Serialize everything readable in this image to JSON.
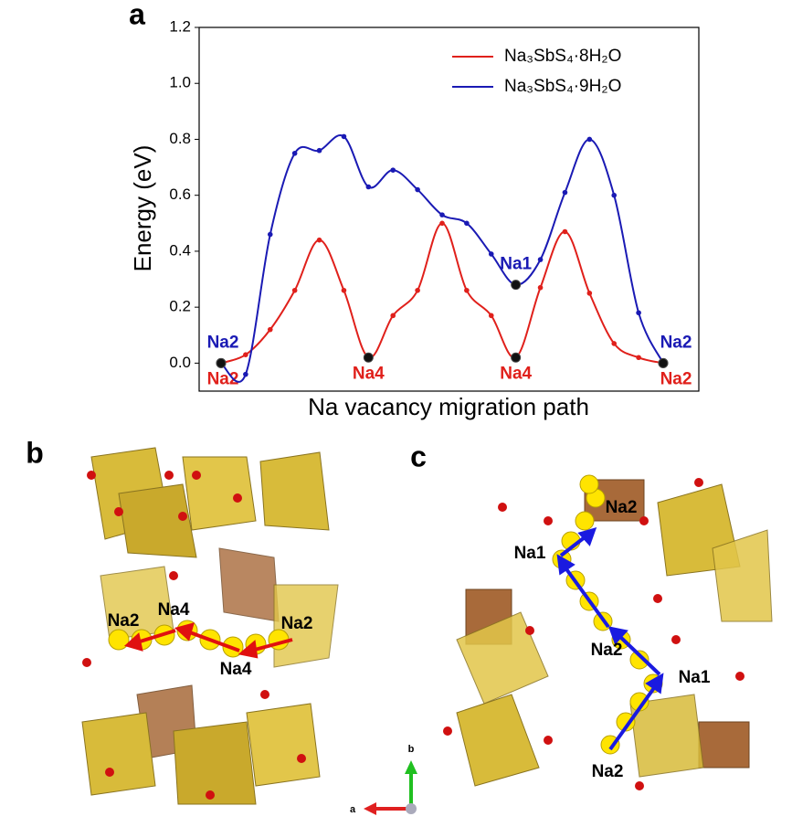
{
  "chart_data": {
    "type": "line",
    "title": "a",
    "ylabel": "Energy (eV)",
    "xlabel": "Na vacancy migration path",
    "categories": [
      null,
      null,
      null,
      null,
      null,
      null,
      null,
      null,
      null,
      null,
      null,
      null,
      null,
      null,
      null,
      null,
      null,
      null,
      null
    ],
    "ylim": [
      -0.1,
      1.2
    ],
    "yticks": [
      {
        "value": 0,
        "label": "0.0"
      },
      0.2,
      0.4,
      0.6,
      0.8,
      {
        "value": 1,
        "label": "1.0"
      },
      1.2
    ],
    "legend": "upper right",
    "series": [
      {
        "name": "Na₃SbS₄·8H₂O",
        "color": "#e0201b",
        "values": [
          0,
          0.03,
          0.12,
          0.26,
          0.44,
          0.26,
          0.02,
          0.17,
          0.26,
          0.5,
          0.26,
          0.17,
          0.02,
          0.27,
          0.47,
          0.25,
          0.07,
          0.02,
          0
        ],
        "point_labels": [
          "Na2",
          null,
          null,
          null,
          null,
          null,
          "Na4",
          null,
          null,
          null,
          null,
          null,
          "Na4",
          null,
          null,
          null,
          null,
          null,
          "Na2"
        ]
      },
      {
        "name": "Na₃SbS₄·9H₂O",
        "color": "#1a1ab4",
        "values": [
          0,
          -0.04,
          0.46,
          0.75,
          0.76,
          0.81,
          0.63,
          0.69,
          0.62,
          0.53,
          0.5,
          0.39,
          0.28,
          0.37,
          0.61,
          0.8,
          0.6,
          0.18,
          0
        ],
        "point_labels": [
          "Na2",
          null,
          null,
          null,
          null,
          null,
          null,
          null,
          null,
          null,
          null,
          null,
          "Na1",
          null,
          null,
          null,
          null,
          null,
          "Na2"
        ]
      }
    ]
  },
  "panel_b": {
    "label": "b",
    "sites": [
      "Na2",
      "Na4",
      "Na4",
      "Na2"
    ]
  },
  "panel_c": {
    "label": "c",
    "sites": [
      "Na2",
      "Na1",
      "Na2",
      "Na1",
      "Na2"
    ]
  },
  "axes_triad": {
    "a": "a",
    "b": "b"
  }
}
